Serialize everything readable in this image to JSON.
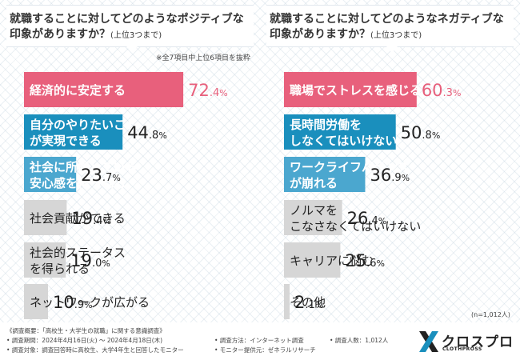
{
  "chart_data": [
    {
      "type": "bar",
      "title": "就職することに対してどのようなポジティブな印象がありますか？",
      "subtitle": "(上位3つまで)",
      "note": "※全7項目中上位6項目を抜粋",
      "unit": "%",
      "categories": [
        "経済的に安定する",
        "自分のやりたいことが実現できる",
        "社会に所属している安心感を得られる",
        "社会貢献ができる",
        "社会的ステータスを得られる",
        "ネットワークが広がる"
      ],
      "category_lines": [
        [
          "経済的に安定する"
        ],
        [
          "自分のやりたいこと",
          "が実現できる"
        ],
        [
          "社会に所属している",
          "安心感を得られる"
        ],
        [
          "社会貢献ができる"
        ],
        [
          "社会的ステータス",
          "を得られる"
        ],
        [
          "ネットワークが広がる"
        ]
      ],
      "values": [
        72.4,
        44.8,
        23.7,
        19.4,
        19.0,
        10.9
      ],
      "value_int": [
        "72",
        "44",
        "23",
        "19",
        "19",
        "10"
      ],
      "value_dec": [
        ".4",
        ".8",
        ".7",
        ".4",
        ".0",
        ".9"
      ],
      "bar_colors": [
        "#e8607c",
        "#1a8fbd",
        "#4ba7cf",
        "#d6d6d6",
        "#d6d6d6",
        "#d6d6d6"
      ],
      "label_colors": [
        "#ffffff",
        "#ffffff",
        "#ffffff",
        "#222222",
        "#222222",
        "#222222"
      ],
      "value_colors": [
        "#e8607c",
        "#222222",
        "#222222",
        "#222222",
        "#222222",
        "#222222"
      ]
    },
    {
      "type": "bar",
      "title": "就職することに対してどのようなネガティブな印象がありますか？",
      "subtitle": "(上位3つまで)",
      "unit": "%",
      "categories": [
        "職場でストレスを感じる",
        "長時間労働をしなくてはいけない",
        "ワークライフバランスが崩れる",
        "ノルマをこなさなくてはいけない",
        "キャリアに悩む",
        "その他"
      ],
      "category_lines": [
        [
          "職場でストレスを感じる"
        ],
        [
          "長時間労働を",
          "しなくてはいけない"
        ],
        [
          "ワークライフバランス",
          "が崩れる"
        ],
        [
          "ノルマを",
          "こなさなくてはいけない"
        ],
        [
          "キャリアに悩む"
        ],
        [
          "その他"
        ]
      ],
      "values": [
        60.3,
        50.8,
        36.9,
        26.4,
        25.6,
        2.1
      ],
      "value_int": [
        "60",
        "50",
        "36",
        "26",
        "25",
        "2"
      ],
      "value_dec": [
        ".3",
        ".8",
        ".9",
        ".4",
        ".6",
        ".1"
      ],
      "bar_colors": [
        "#e8607c",
        "#1a8fbd",
        "#4ba7cf",
        "#d6d6d6",
        "#d6d6d6",
        "#d6d6d6"
      ],
      "label_colors": [
        "#ffffff",
        "#ffffff",
        "#ffffff",
        "#222222",
        "#222222",
        "#222222"
      ],
      "value_colors": [
        "#e8607c",
        "#222222",
        "#222222",
        "#222222",
        "#222222",
        "#222222"
      ],
      "n_label": "(n=1,012人)"
    }
  ],
  "footer": {
    "summary": "《調査概要：「高校生・大学生の就職」に関する意識調査》",
    "period": "• 調査期間：2024年4月16日(火) ～ 2024年4月18日(木)",
    "target": "• 調査対象：調査回答時に高校生、大学4年生と回答したモニター",
    "method": "• 調査方法：インターネット調査",
    "provider": "• モニター提供元：ゼネラルリサーチ",
    "respondents": "• 調査人数：1,012人"
  },
  "logo": {
    "text": "クロスプロ",
    "sub": "CLOTHPROSS",
    "colors": [
      "#222222",
      "#1a8fbd"
    ]
  }
}
